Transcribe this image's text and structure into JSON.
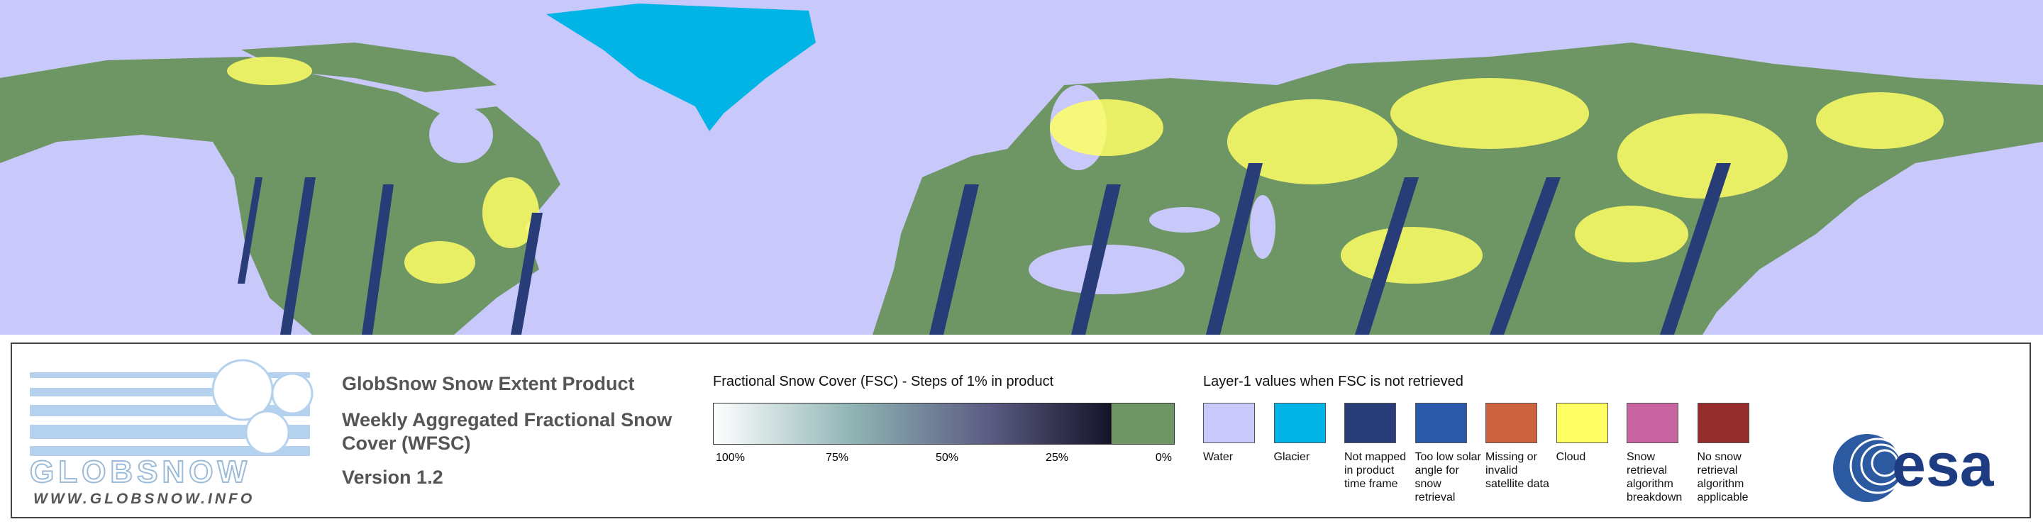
{
  "logo": {
    "text": "GLOBSNOW",
    "url": "WWW.GLOBSNOW.INFO"
  },
  "product": {
    "title": "GlobSnow Snow Extent Product",
    "subtitle": "Weekly Aggregated Fractional Snow Cover (WFSC)",
    "version": "Version 1.2"
  },
  "fsc_legend": {
    "title": "Fractional Snow Cover (FSC) - Steps of 1% in product",
    "ticks": [
      "100%",
      "75%",
      "50%",
      "25%",
      "0%"
    ]
  },
  "layer1_legend": {
    "title": "Layer-1 values when FSC is not retrieved",
    "items": [
      {
        "label": "Water",
        "color": "#c8c8fa"
      },
      {
        "label": "Glacier",
        "color": "#00b4e6"
      },
      {
        "label": "Not mapped in product time frame",
        "color": "#283c78"
      },
      {
        "label": "Too low solar angle for snow retrieval",
        "color": "#2a5aa8"
      },
      {
        "label": "Missing or invalid satellite data",
        "color": "#cd6440"
      },
      {
        "label": "Cloud",
        "color": "#ffff64"
      },
      {
        "label": "Snow retrieval algorithm breakdown",
        "color": "#c864a0"
      },
      {
        "label": "No snow retrieval algorithm applicable",
        "color": "#962d2d"
      }
    ]
  },
  "esa_logo": {
    "text": "esa"
  }
}
